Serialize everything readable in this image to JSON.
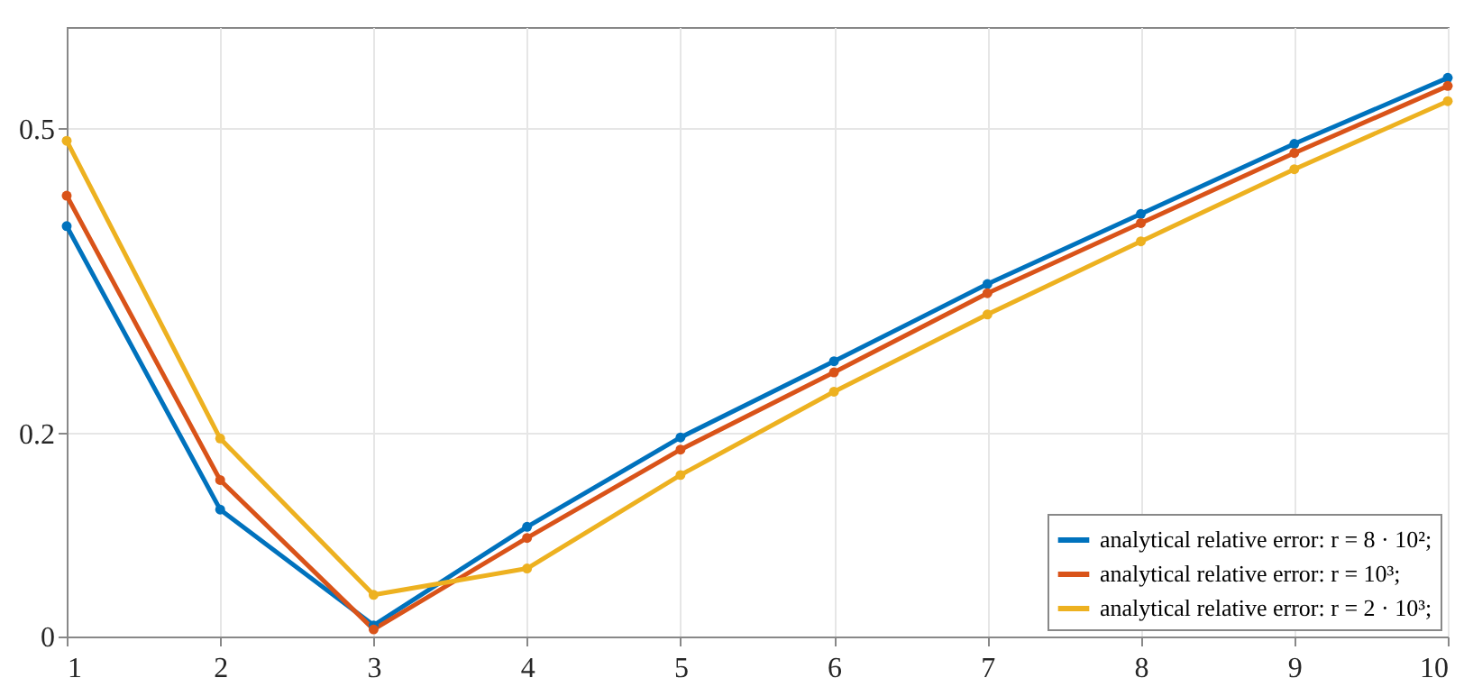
{
  "chart_data": {
    "type": "line",
    "x": [
      1,
      2,
      3,
      4,
      5,
      6,
      7,
      8,
      9,
      10
    ],
    "series": [
      {
        "name": "analytical relative error: r = 8 · 10²;",
        "color": "#0072bd",
        "values": [
          0.404,
          0.125,
          0.011,
          0.108,
          0.196,
          0.271,
          0.347,
          0.416,
          0.485,
          0.55
        ]
      },
      {
        "name": "analytical relative error: r = 10³;",
        "color": "#d95319",
        "values": [
          0.434,
          0.154,
          0.007,
          0.097,
          0.184,
          0.26,
          0.338,
          0.407,
          0.476,
          0.542
        ]
      },
      {
        "name": "analytical relative error: r = 2 · 10³;",
        "color": "#edb120",
        "values": [
          0.488,
          0.195,
          0.041,
          0.067,
          0.159,
          0.241,
          0.317,
          0.389,
          0.46,
          0.527
        ]
      }
    ],
    "xlim": [
      1,
      10
    ],
    "xticks": [
      1,
      2,
      3,
      4,
      5,
      6,
      7,
      8,
      9,
      10
    ],
    "ylim": [
      0,
      0.6
    ],
    "yticks": [
      0,
      0.2,
      0.5
    ],
    "grid": true,
    "legend": "bottom right",
    "marker": "circle",
    "line_style": "solid"
  }
}
